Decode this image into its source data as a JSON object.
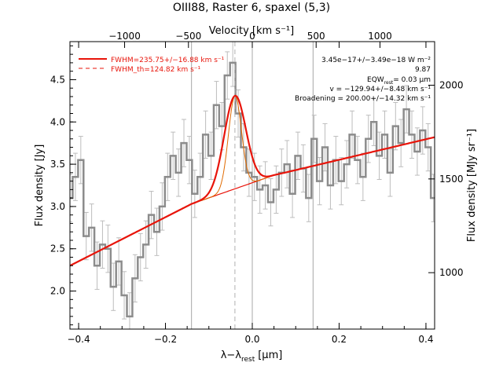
{
  "chart_data": {
    "type": "line",
    "title": "OIII88, Raster 6, spaxel (5,3)",
    "xlabel": "λ−λ",
    "xlabel_sub": "rest",
    "xlabel_unit": "[μm]",
    "ylabel": "Flux density [Jy]",
    "ylabel_right": "Flux density [MJy sr⁻¹]",
    "xlabel_top": "Velocity [km s⁻¹]",
    "xlim": [
      -0.42,
      0.42
    ],
    "ylim": [
      1.55,
      4.95
    ],
    "grid": false,
    "x_ticks": [
      "−0.4",
      "−0.2",
      "0.0",
      "0.2",
      "0.4"
    ],
    "x_tick_values": [
      -0.4,
      -0.2,
      0.0,
      0.2,
      0.4
    ],
    "y_ticks": [
      "2.0",
      "2.5",
      "3.0",
      "3.5",
      "4.0",
      "4.5"
    ],
    "y_tick_values": [
      2.0,
      2.5,
      3.0,
      3.5,
      4.0,
      4.5
    ],
    "top_ticks": [
      "−1000",
      "−500",
      "0",
      "500",
      "1000"
    ],
    "top_tick_values": [
      -1000,
      -500,
      0,
      500,
      1000
    ],
    "right_ticks": [
      "1000",
      "1500",
      "2000"
    ],
    "right_tick_values": [
      1000,
      1500,
      2000
    ],
    "velocity_per_micron": 3400,
    "right_scale_per_jy": 451,
    "vertical_lines_x": [
      -0.14,
      0.0,
      0.14
    ],
    "line_center_x": -0.04,
    "legend": [
      {
        "label": "FWHM=235.75+/−16.88 km s⁻¹",
        "style": "solid",
        "color": "#e8140a"
      },
      {
        "label": "FWHM_th=124.82 km s⁻¹",
        "style": "dashed",
        "color": "#e8140a"
      }
    ],
    "annotations": [
      "3.45e−17+/−3.49e−18 W m⁻²",
      "9.87",
      "EQW",
      "rest",
      "= 0.03 μm",
      "v = −129.94+/−8.48 km s⁻¹",
      "Broadening = 200.00+/−14.32 km s⁻¹"
    ],
    "colors": {
      "data": "#8c8c8c",
      "fit": "#e8140a",
      "components": "#e06a00",
      "vlines": "#a8a8a8"
    },
    "series": [
      {
        "kind": "data-steps",
        "x": [
          -0.42,
          -0.4075,
          -0.395,
          -0.3825,
          -0.37,
          -0.3575,
          -0.345,
          -0.3325,
          -0.32,
          -0.3075,
          -0.295,
          -0.2825,
          -0.27,
          -0.2575,
          -0.245,
          -0.2325,
          -0.22,
          -0.2075,
          -0.195,
          -0.1825,
          -0.17,
          -0.1575,
          -0.145,
          -0.1325,
          -0.12,
          -0.1075,
          -0.095,
          -0.0825,
          -0.07,
          -0.0575,
          -0.045,
          -0.0325,
          -0.02,
          -0.0075,
          0.005,
          0.0175,
          0.03,
          0.0425,
          0.055,
          0.0675,
          0.08,
          0.0925,
          0.105,
          0.1175,
          0.13,
          0.1425,
          0.155,
          0.1675,
          0.18,
          0.1925,
          0.205,
          0.2175,
          0.23,
          0.2425,
          0.255,
          0.2675,
          0.28,
          0.2925,
          0.305,
          0.3175,
          0.33,
          0.3425,
          0.355,
          0.3675,
          0.38,
          0.3925,
          0.405,
          0.4175
        ],
        "y": [
          3.1,
          3.35,
          3.55,
          2.65,
          2.75,
          2.3,
          2.55,
          2.5,
          2.05,
          2.35,
          1.95,
          1.7,
          2.15,
          2.4,
          2.55,
          2.9,
          2.7,
          3.0,
          3.35,
          3.6,
          3.4,
          3.75,
          3.55,
          3.15,
          3.35,
          3.85,
          3.6,
          4.2,
          3.95,
          4.55,
          4.7,
          4.1,
          3.7,
          3.4,
          3.35,
          3.2,
          3.25,
          3.05,
          3.2,
          3.4,
          3.5,
          3.15,
          3.6,
          3.45,
          3.1,
          3.8,
          3.3,
          3.7,
          3.25,
          3.55,
          3.3,
          3.5,
          3.85,
          3.55,
          3.35,
          3.8,
          4.0,
          3.6,
          3.85,
          3.4,
          3.95,
          3.75,
          4.15,
          3.85,
          3.65,
          3.9,
          3.7,
          3.1
        ],
        "err": 0.28
      },
      {
        "kind": "model",
        "baseline_x": [
          -0.42,
          -0.14,
          0.05,
          0.42
        ],
        "baseline_y": [
          2.3,
          3.03,
          3.37,
          3.82
        ],
        "amplitude": 1.1,
        "center": -0.04,
        "sigma": 0.025
      }
    ]
  }
}
